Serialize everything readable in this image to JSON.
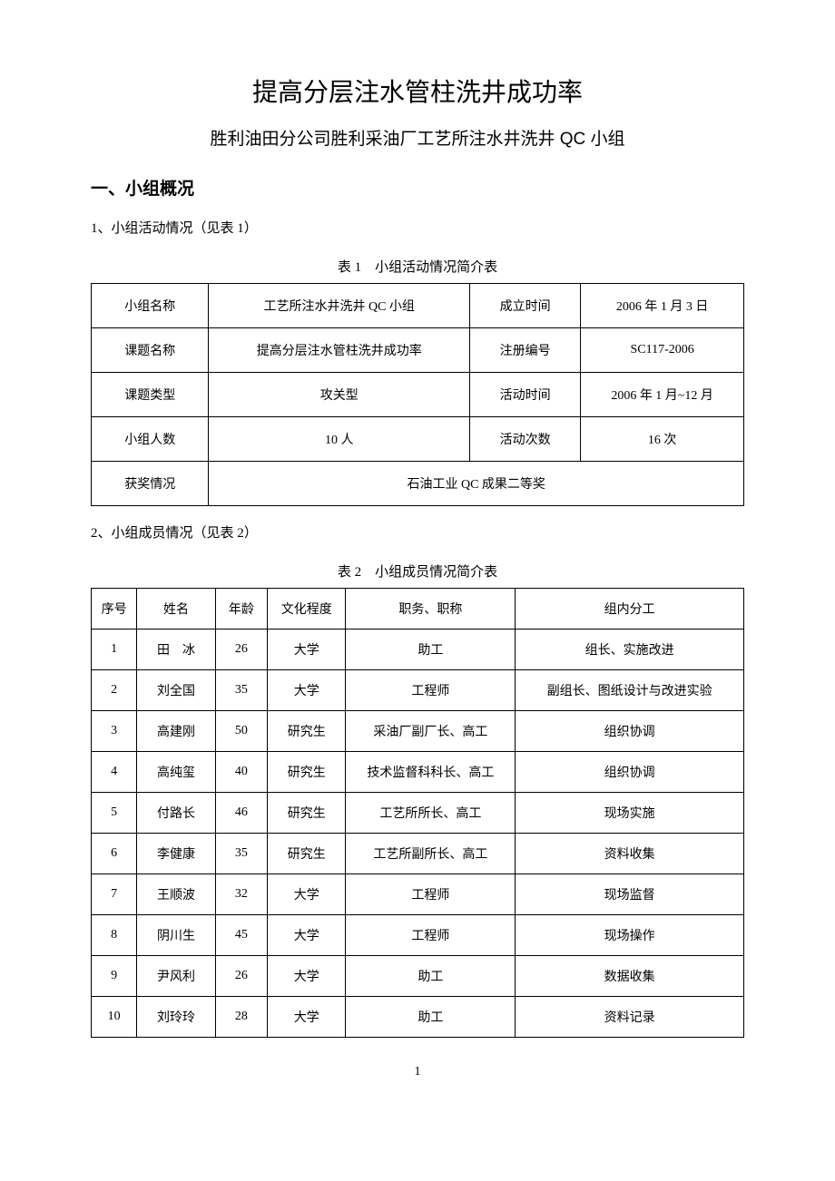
{
  "title": "提高分层注水管柱洗井成功率",
  "subtitle": "胜利油田分公司胜利采油厂工艺所注水井洗井 QC 小组",
  "section1_heading": "一、小组概况",
  "item1_intro": "1、小组活动情况（见表 1）",
  "table1_caption": "表 1　小组活动情况简介表",
  "table1": {
    "rows": [
      [
        "小组名称",
        "工艺所注水井洗井 QC 小组",
        "成立时间",
        "2006 年 1 月 3 日"
      ],
      [
        "课题名称",
        "提高分层注水管柱洗井成功率",
        "注册编号",
        "SC117-2006"
      ],
      [
        "课题类型",
        "攻关型",
        "活动时间",
        "2006 年 1 月~12 月"
      ],
      [
        "小组人数",
        "10 人",
        "活动次数",
        "16 次"
      ]
    ],
    "award_label": "获奖情况",
    "award_value": "石油工业 QC 成果二等奖"
  },
  "item2_intro": "2、小组成员情况（见表 2）",
  "table2_caption": "表 2　小组成员情况简介表",
  "table2": {
    "headers": [
      "序号",
      "姓名",
      "年龄",
      "文化程度",
      "职务、职称",
      "组内分工"
    ],
    "rows": [
      [
        "1",
        "田　冰",
        "26",
        "大学",
        "助工",
        "组长、实施改进"
      ],
      [
        "2",
        "刘全国",
        "35",
        "大学",
        "工程师",
        "副组长、图纸设计与改进实验"
      ],
      [
        "3",
        "高建刚",
        "50",
        "研究生",
        "采油厂副厂长、高工",
        "组织协调"
      ],
      [
        "4",
        "高纯玺",
        "40",
        "研究生",
        "技术监督科科长、高工",
        "组织协调"
      ],
      [
        "5",
        "付路长",
        "46",
        "研究生",
        "工艺所所长、高工",
        "现场实施"
      ],
      [
        "6",
        "李健康",
        "35",
        "研究生",
        "工艺所副所长、高工",
        "资料收集"
      ],
      [
        "7",
        "王顺波",
        "32",
        "大学",
        "工程师",
        "现场监督"
      ],
      [
        "8",
        "阴川生",
        "45",
        "大学",
        "工程师",
        "现场操作"
      ],
      [
        "9",
        "尹风利",
        "26",
        "大学",
        "助工",
        "数据收集"
      ],
      [
        "10",
        "刘玲玲",
        "28",
        "大学",
        "助工",
        "资料记录"
      ]
    ]
  },
  "page_number": "1"
}
